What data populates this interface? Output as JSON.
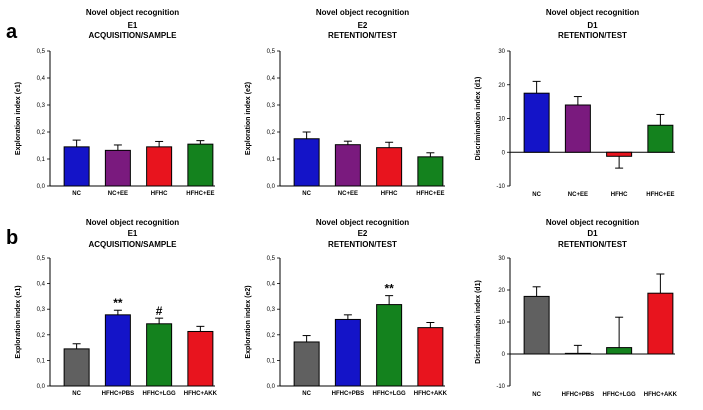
{
  "rows": [
    {
      "letter": "a"
    },
    {
      "letter": "b"
    }
  ],
  "colors": {
    "NC": "#1414c8",
    "NC+EE": "#7a1a7e",
    "HFHC": "#e8141e",
    "HFHC+EE": "#14821e",
    "NC_b": "#606060",
    "HFHC+PBS": "#1414c8",
    "HFHC+LGG": "#14821e",
    "HFHC+AKK": "#e8141e"
  },
  "chart_data": [
    {
      "type": "bar",
      "row": 0,
      "col": 0,
      "title": [
        "Novel object recognition",
        "E1",
        "ACQUISITION/SAMPLE"
      ],
      "ylabel": "Exploration index (e1)",
      "categories": [
        "NC",
        "NC+EE",
        "HFHC",
        "HFHC+EE"
      ],
      "values": [
        0.145,
        0.132,
        0.145,
        0.155
      ],
      "errors": [
        0.025,
        0.02,
        0.02,
        0.013
      ],
      "color_keys": [
        "NC",
        "NC+EE",
        "HFHC",
        "HFHC+EE"
      ],
      "ylim": [
        0,
        0.5
      ],
      "yticks": [
        0,
        0.1,
        0.2,
        0.3,
        0.4,
        0.5
      ],
      "ytick_labels": [
        "0,0",
        "0,1",
        "0,2",
        "0,3",
        "0,4",
        "0,5"
      ],
      "annotations": [
        "",
        "",
        "",
        ""
      ]
    },
    {
      "type": "bar",
      "row": 0,
      "col": 1,
      "title": [
        "Novel object recognition",
        "E2",
        "RETENTION/TEST"
      ],
      "ylabel": "Exploration index (e2)",
      "categories": [
        "NC",
        "NC+EE",
        "HFHC",
        "HFHC+EE"
      ],
      "values": [
        0.175,
        0.153,
        0.142,
        0.108
      ],
      "errors": [
        0.025,
        0.013,
        0.02,
        0.015
      ],
      "color_keys": [
        "NC",
        "NC+EE",
        "HFHC",
        "HFHC+EE"
      ],
      "ylim": [
        0,
        0.5
      ],
      "yticks": [
        0,
        0.1,
        0.2,
        0.3,
        0.4,
        0.5
      ],
      "ytick_labels": [
        "0,0",
        "0,1",
        "0,2",
        "0,3",
        "0,4",
        "0,5"
      ],
      "annotations": [
        "",
        "",
        "",
        ""
      ]
    },
    {
      "type": "bar",
      "row": 0,
      "col": 2,
      "title": [
        "Novel object recognition",
        "D1",
        "RETENTION/TEST"
      ],
      "ylabel": "Discrimination index (d1)",
      "categories": [
        "NC",
        "NC+EE",
        "HFHC",
        "HFHC+EE"
      ],
      "values": [
        17.5,
        14.0,
        -1.2,
        8.0
      ],
      "errors": [
        3.5,
        2.5,
        3.5,
        3.2
      ],
      "color_keys": [
        "NC",
        "NC+EE",
        "HFHC",
        "HFHC+EE"
      ],
      "ylim": [
        -10,
        30
      ],
      "yticks": [
        -10,
        0,
        10,
        20,
        30
      ],
      "ytick_labels": [
        "-10",
        "0",
        "10",
        "20",
        "30"
      ],
      "annotations": [
        "",
        "",
        "",
        ""
      ]
    },
    {
      "type": "bar",
      "row": 1,
      "col": 0,
      "title": [
        "Novel object recognition",
        "E1",
        "ACQUISITION/SAMPLE"
      ],
      "ylabel": "Exploration index (e1)",
      "categories": [
        "NC",
        "HFHC+PBS",
        "HFHC+LGG",
        "HFHC+AKK"
      ],
      "values": [
        0.145,
        0.278,
        0.243,
        0.213
      ],
      "errors": [
        0.02,
        0.018,
        0.022,
        0.02
      ],
      "color_keys": [
        "NC_b",
        "HFHC+PBS",
        "HFHC+LGG",
        "HFHC+AKK"
      ],
      "ylim": [
        0,
        0.5
      ],
      "yticks": [
        0,
        0.1,
        0.2,
        0.3,
        0.4,
        0.5
      ],
      "ytick_labels": [
        "0,0",
        "0,1",
        "0,2",
        "0,3",
        "0,4",
        "0,5"
      ],
      "annotations": [
        "",
        "**",
        "#",
        ""
      ]
    },
    {
      "type": "bar",
      "row": 1,
      "col": 1,
      "title": [
        "Novel object recognition",
        "E2",
        "RETENTION/TEST"
      ],
      "ylabel": "Exploration index (e2)",
      "categories": [
        "NC",
        "HFHC+PBS",
        "HFHC+LGG",
        "HFHC+AKK"
      ],
      "values": [
        0.172,
        0.26,
        0.318,
        0.228
      ],
      "errors": [
        0.025,
        0.018,
        0.035,
        0.02
      ],
      "color_keys": [
        "NC_b",
        "HFHC+PBS",
        "HFHC+LGG",
        "HFHC+AKK"
      ],
      "ylim": [
        0,
        0.5
      ],
      "yticks": [
        0,
        0.1,
        0.2,
        0.3,
        0.4,
        0.5
      ],
      "ytick_labels": [
        "0,0",
        "0,1",
        "0,2",
        "0,3",
        "0,4",
        "0,5"
      ],
      "annotations": [
        "",
        "",
        "**",
        ""
      ]
    },
    {
      "type": "bar",
      "row": 1,
      "col": 2,
      "title": [
        "Novel object recognition",
        "D1",
        "RETENTION/TEST"
      ],
      "ylabel": "Discrimination index (d1)",
      "categories": [
        "NC",
        "HFHC+PBS",
        "HFHC+LGG",
        "HFHC+AKK"
      ],
      "values": [
        18.0,
        0.2,
        2.0,
        19.0
      ],
      "errors": [
        3.0,
        2.5,
        9.5,
        6.0
      ],
      "color_keys": [
        "NC_b",
        "HFHC+PBS",
        "HFHC+LGG",
        "HFHC+AKK"
      ],
      "hollow": true,
      "ylim": [
        -10,
        30
      ],
      "yticks": [
        -10,
        0,
        10,
        20,
        30
      ],
      "ytick_labels": [
        "-10",
        "0",
        "10",
        "20",
        "30"
      ],
      "annotations": [
        "",
        "",
        "",
        ""
      ]
    }
  ]
}
